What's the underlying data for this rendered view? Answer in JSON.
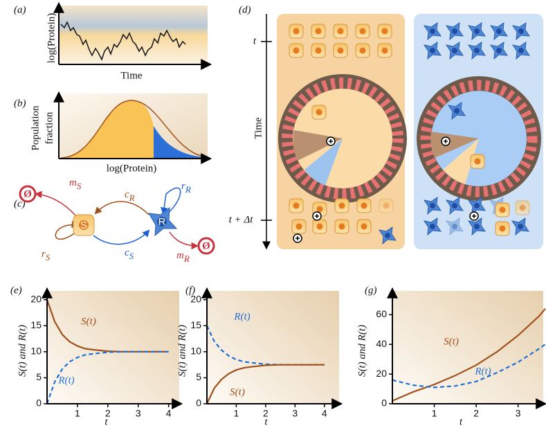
{
  "panels": {
    "a": {
      "label": "(a)",
      "y_label": "log(Protein)",
      "x_label": "Time"
    },
    "b": {
      "label": "(b)",
      "y_label": [
        "Population",
        "fraction"
      ],
      "x_label": "log(Protein)"
    },
    "c": {
      "label": "(c)",
      "nodes": [
        "S",
        "R"
      ],
      "sinks": [
        "Ø",
        "Ø"
      ],
      "rates": [
        {
          "main": "m",
          "sub": "S"
        },
        {
          "main": "c",
          "sub": "R"
        },
        {
          "main": "r",
          "sub": "R"
        },
        {
          "main": "r",
          "sub": "S"
        },
        {
          "main": "c",
          "sub": "S"
        },
        {
          "main": "m",
          "sub": "R"
        }
      ]
    },
    "d": {
      "label": "(d)",
      "axis_label": "Time",
      "times": [
        "t",
        "t + Δt"
      ]
    }
  },
  "chart_data": [
    {
      "type": "line",
      "panel_label": "(e)",
      "y_label": "S(t) and R(t)",
      "x_label": "t",
      "x": [
        0,
        0.25,
        0.5,
        0.75,
        1,
        1.25,
        1.5,
        2,
        2.5,
        3,
        3.5,
        4
      ],
      "series": [
        {
          "name": "S(t)",
          "color": "#a0501a",
          "style": "solid",
          "values": [
            20,
            15.8,
            13.3,
            11.9,
            11.1,
            10.6,
            10.4,
            10.1,
            10,
            10,
            10,
            10
          ]
        },
        {
          "name": "R(t)",
          "color": "#1f6fd6",
          "style": "dashed",
          "values": [
            0,
            4.2,
            6.7,
            8.1,
            8.9,
            9.4,
            9.6,
            9.9,
            10,
            10,
            10,
            10
          ]
        }
      ],
      "xlim": [
        0,
        4.35
      ],
      "ylim": [
        0,
        21.7
      ],
      "xticks": [
        1,
        2,
        3,
        4
      ],
      "yticks": [
        0,
        5,
        10,
        15,
        20
      ]
    },
    {
      "type": "line",
      "panel_label": "(f)",
      "y_label": "S(t) and R(t)",
      "x_label": "t",
      "x": [
        0,
        0.25,
        0.5,
        0.75,
        1,
        1.25,
        1.5,
        2,
        2.5,
        3,
        3.5,
        4
      ],
      "series": [
        {
          "name": "R(t)",
          "color": "#1f6fd6",
          "style": "dashed",
          "values": [
            15,
            12,
            10.3,
            9.2,
            8.5,
            8.1,
            7.9,
            7.6,
            7.5,
            7.5,
            7.5,
            7.5
          ]
        },
        {
          "name": "S(t)",
          "color": "#a0501a",
          "style": "solid",
          "values": [
            0,
            3,
            4.7,
            5.8,
            6.5,
            6.9,
            7.1,
            7.4,
            7.5,
            7.5,
            7.5,
            7.5
          ]
        }
      ],
      "xlim": [
        0,
        4.5
      ],
      "ylim": [
        0,
        21.7
      ],
      "xticks": [
        1,
        2,
        3,
        4
      ],
      "yticks": [
        0,
        5,
        10,
        15,
        20
      ]
    },
    {
      "type": "line",
      "panel_label": "(g)",
      "y_label": "S(t) and R(t)",
      "x_label": "t",
      "x": [
        0,
        0.5,
        1,
        1.5,
        2,
        2.5,
        3,
        3.5,
        3.65
      ],
      "series": [
        {
          "name": "S(t)",
          "color": "#a0501a",
          "style": "solid",
          "values": [
            2,
            8,
            13,
            19,
            26,
            35,
            46,
            59,
            64
          ]
        },
        {
          "name": "R(t)",
          "color": "#1f6fd6",
          "style": "dashed",
          "values": [
            16,
            12.5,
            11,
            12,
            15,
            21,
            28,
            37,
            40
          ]
        }
      ],
      "xlim": [
        0,
        3.6
      ],
      "ylim": [
        0,
        76
      ],
      "xticks": [
        1,
        2,
        3
      ],
      "yticks": [
        0,
        20,
        40,
        60
      ]
    }
  ]
}
